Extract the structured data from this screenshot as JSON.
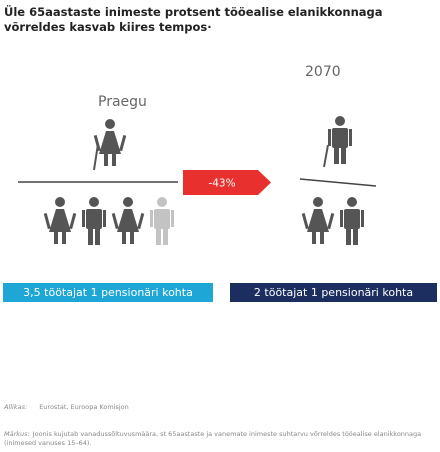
{
  "header": {
    "title": "Üle 65aastaste inimeste protsent tööealise elanikkonnaga võrreldes kasvab kiires tempos·"
  },
  "left": {
    "label": "Praegu",
    "caption": "3,5 töötajat 1 pensionäri kohta"
  },
  "right": {
    "label": "2070",
    "caption": "2 töötajat 1 pensionäri kohta"
  },
  "change": "-43%",
  "source": {
    "label": "Allikas:",
    "text": "Eurostat, Euroopa Komisjon"
  },
  "note": {
    "label": "Märkus:",
    "text": "Joonis kujutab vanadussõltuvusmäära, st 65aastaste ja vanemate inimeste suhtarvu võrreldes tööealise elanikkonnaga (inimesed vanuses 15–64)."
  }
}
